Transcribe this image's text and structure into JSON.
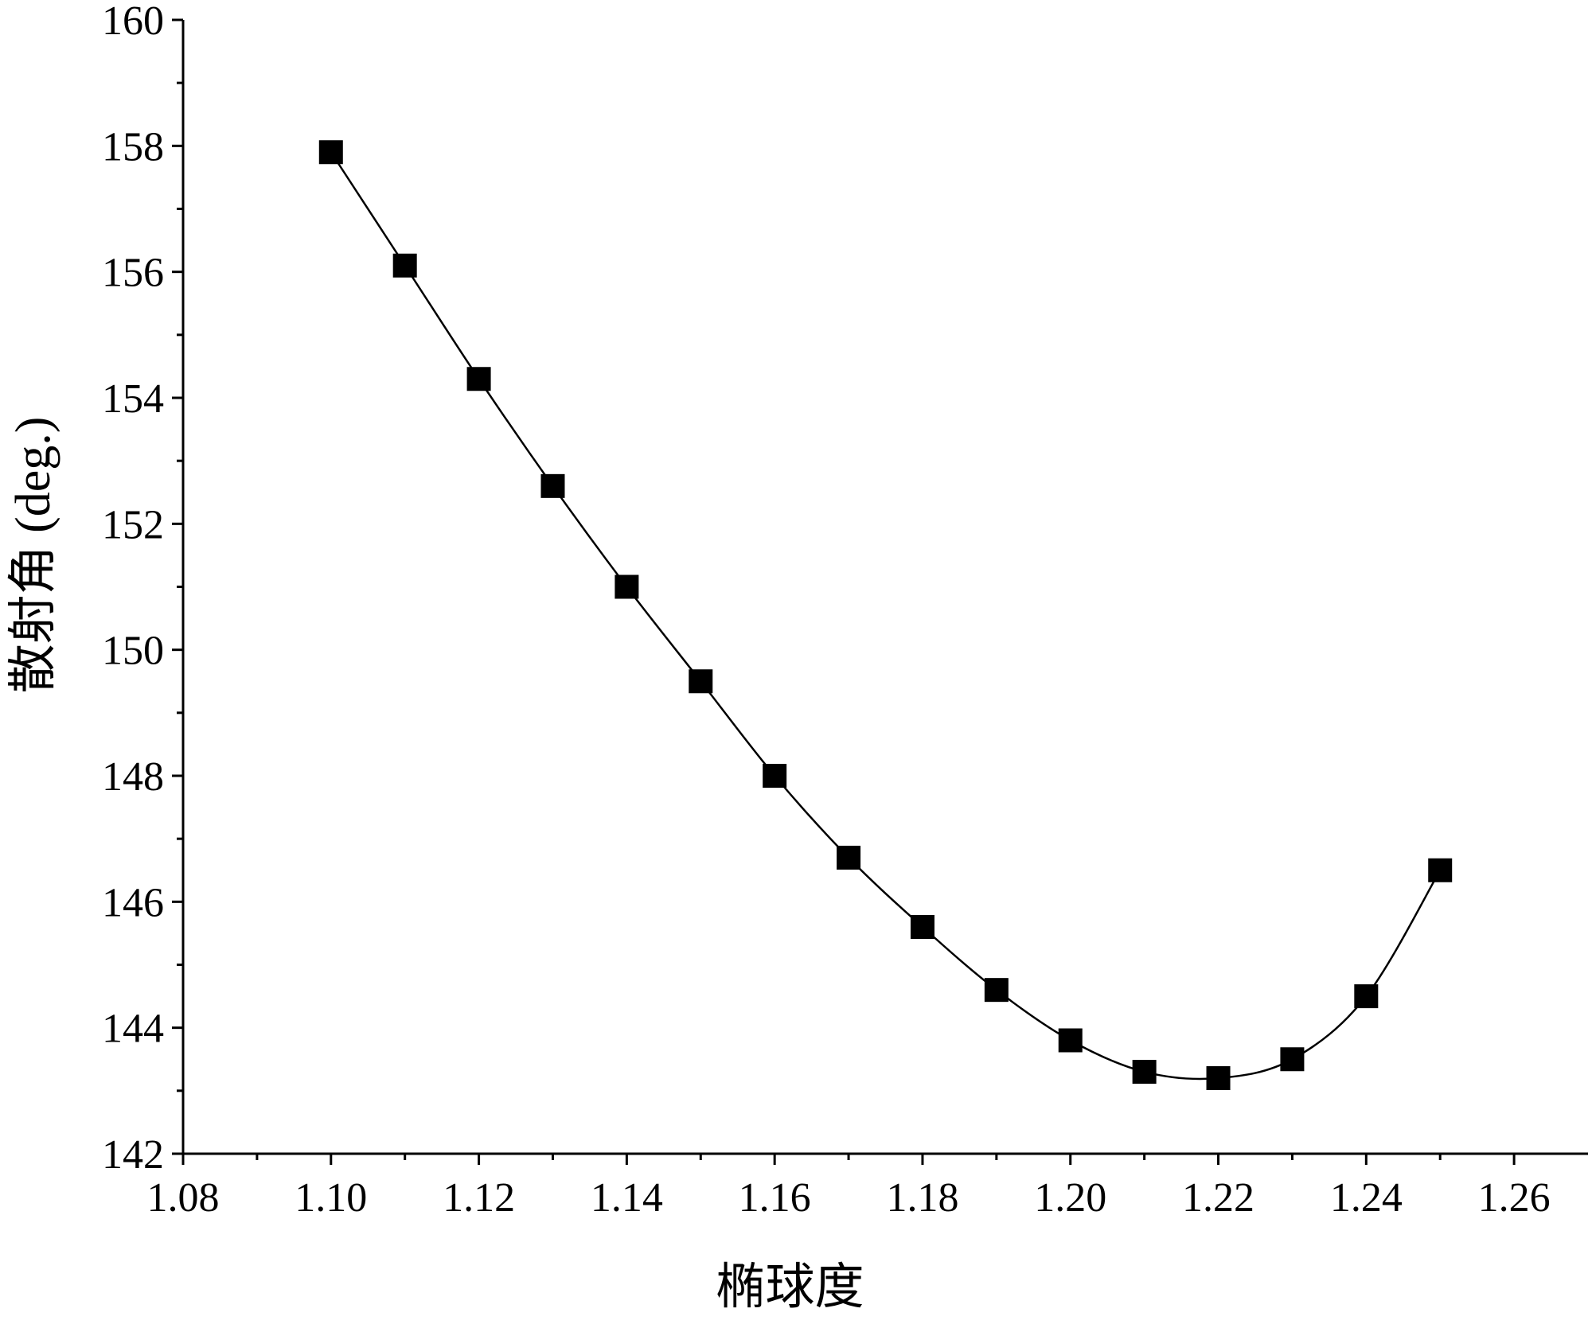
{
  "chart_data": {
    "type": "line",
    "title": "",
    "xlabel": "椭球度",
    "ylabel": "散射角 (deg.)",
    "xlim": [
      1.08,
      1.27
    ],
    "ylim": [
      142,
      160
    ],
    "x_ticks": [
      "1.08",
      "1.10",
      "1.12",
      "1.14",
      "1.16",
      "1.18",
      "1.20",
      "1.22",
      "1.24",
      "1.26"
    ],
    "y_ticks": [
      "142",
      "144",
      "146",
      "148",
      "150",
      "152",
      "154",
      "156",
      "158",
      "160"
    ],
    "grid": false,
    "legend": "none",
    "marker": "square",
    "color": "#000000",
    "series": [
      {
        "x": [
          1.1,
          1.11,
          1.12,
          1.13,
          1.14,
          1.15,
          1.16,
          1.17,
          1.18,
          1.19,
          1.2,
          1.21,
          1.22,
          1.23,
          1.24,
          1.25
        ],
        "y": [
          157.9,
          156.1,
          154.3,
          152.6,
          151.0,
          149.5,
          148.0,
          146.7,
          145.6,
          144.6,
          143.8,
          143.3,
          143.2,
          143.5,
          144.5,
          146.5
        ]
      }
    ]
  }
}
